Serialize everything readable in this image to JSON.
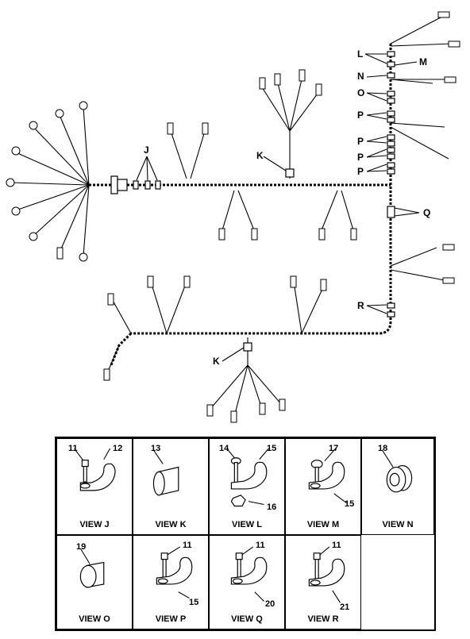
{
  "callouts": {
    "J": "J",
    "K_top": "K",
    "K_bottom": "K",
    "L": "L",
    "M": "M",
    "N": "N",
    "O": "O",
    "P1": "P",
    "P2": "P",
    "P3": "P",
    "P4": "P",
    "Q": "Q",
    "R": "R"
  },
  "views": [
    {
      "caption": "VIEW J",
      "parts": [
        "11",
        "12"
      ]
    },
    {
      "caption": "VIEW K",
      "parts": [
        "13"
      ]
    },
    {
      "caption": "VIEW L",
      "parts": [
        "14",
        "15",
        "16"
      ]
    },
    {
      "caption": "VIEW M",
      "parts": [
        "17",
        "15"
      ]
    },
    {
      "caption": "VIEW N",
      "parts": [
        "18"
      ]
    },
    {
      "caption": "VIEW O",
      "parts": [
        "19"
      ]
    },
    {
      "caption": "VIEW P",
      "parts": [
        "11",
        "15"
      ]
    },
    {
      "caption": "VIEW Q",
      "parts": [
        "11",
        "20"
      ]
    },
    {
      "caption": "VIEW R",
      "parts": [
        "11",
        "21"
      ]
    }
  ]
}
